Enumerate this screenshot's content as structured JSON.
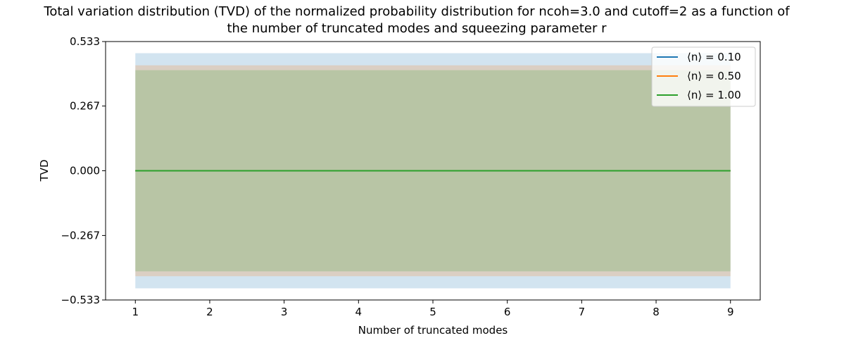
{
  "chart_data": {
    "type": "line",
    "title_line1": "Total variation distribution (TVD) of the normalized probability distribution for ncoh=3.0 and cutoff=2 as a function of",
    "title_line2": "the number of truncated modes and squeezing parameter r",
    "xlabel": "Number of truncated modes",
    "ylabel": "TVD",
    "xlim": [
      0.6,
      9.4
    ],
    "ylim": [
      -0.533,
      0.533
    ],
    "x": [
      1,
      2,
      3,
      4,
      5,
      6,
      7,
      8,
      9
    ],
    "x_ticks": [
      "1",
      "2",
      "3",
      "4",
      "5",
      "6",
      "7",
      "8",
      "9"
    ],
    "y_tick_values": [
      -0.533,
      -0.267,
      0.0,
      0.267,
      0.533
    ],
    "y_ticks": [
      "−0.533",
      "−0.267",
      "0.000",
      "0.267",
      "0.533"
    ],
    "grid": false,
    "legend_position": "top-right",
    "series": [
      {
        "name": "⟨n⟩ =  0.10",
        "color": "#1f77b4",
        "values": [
          0,
          0,
          0,
          0,
          0,
          0,
          0,
          0,
          0
        ],
        "band": [
          -0.485,
          0.485
        ]
      },
      {
        "name": "⟨n⟩ =  0.50",
        "color": "#ff7f0e",
        "values": [
          0,
          0,
          0,
          0,
          0,
          0,
          0,
          0,
          0
        ],
        "band": [
          -0.435,
          0.435
        ]
      },
      {
        "name": "⟨n⟩ =  1.00",
        "color": "#2ca02c",
        "values": [
          0,
          0,
          0,
          0,
          0,
          0,
          0,
          0,
          0
        ],
        "band": [
          -0.415,
          0.415
        ]
      }
    ]
  }
}
